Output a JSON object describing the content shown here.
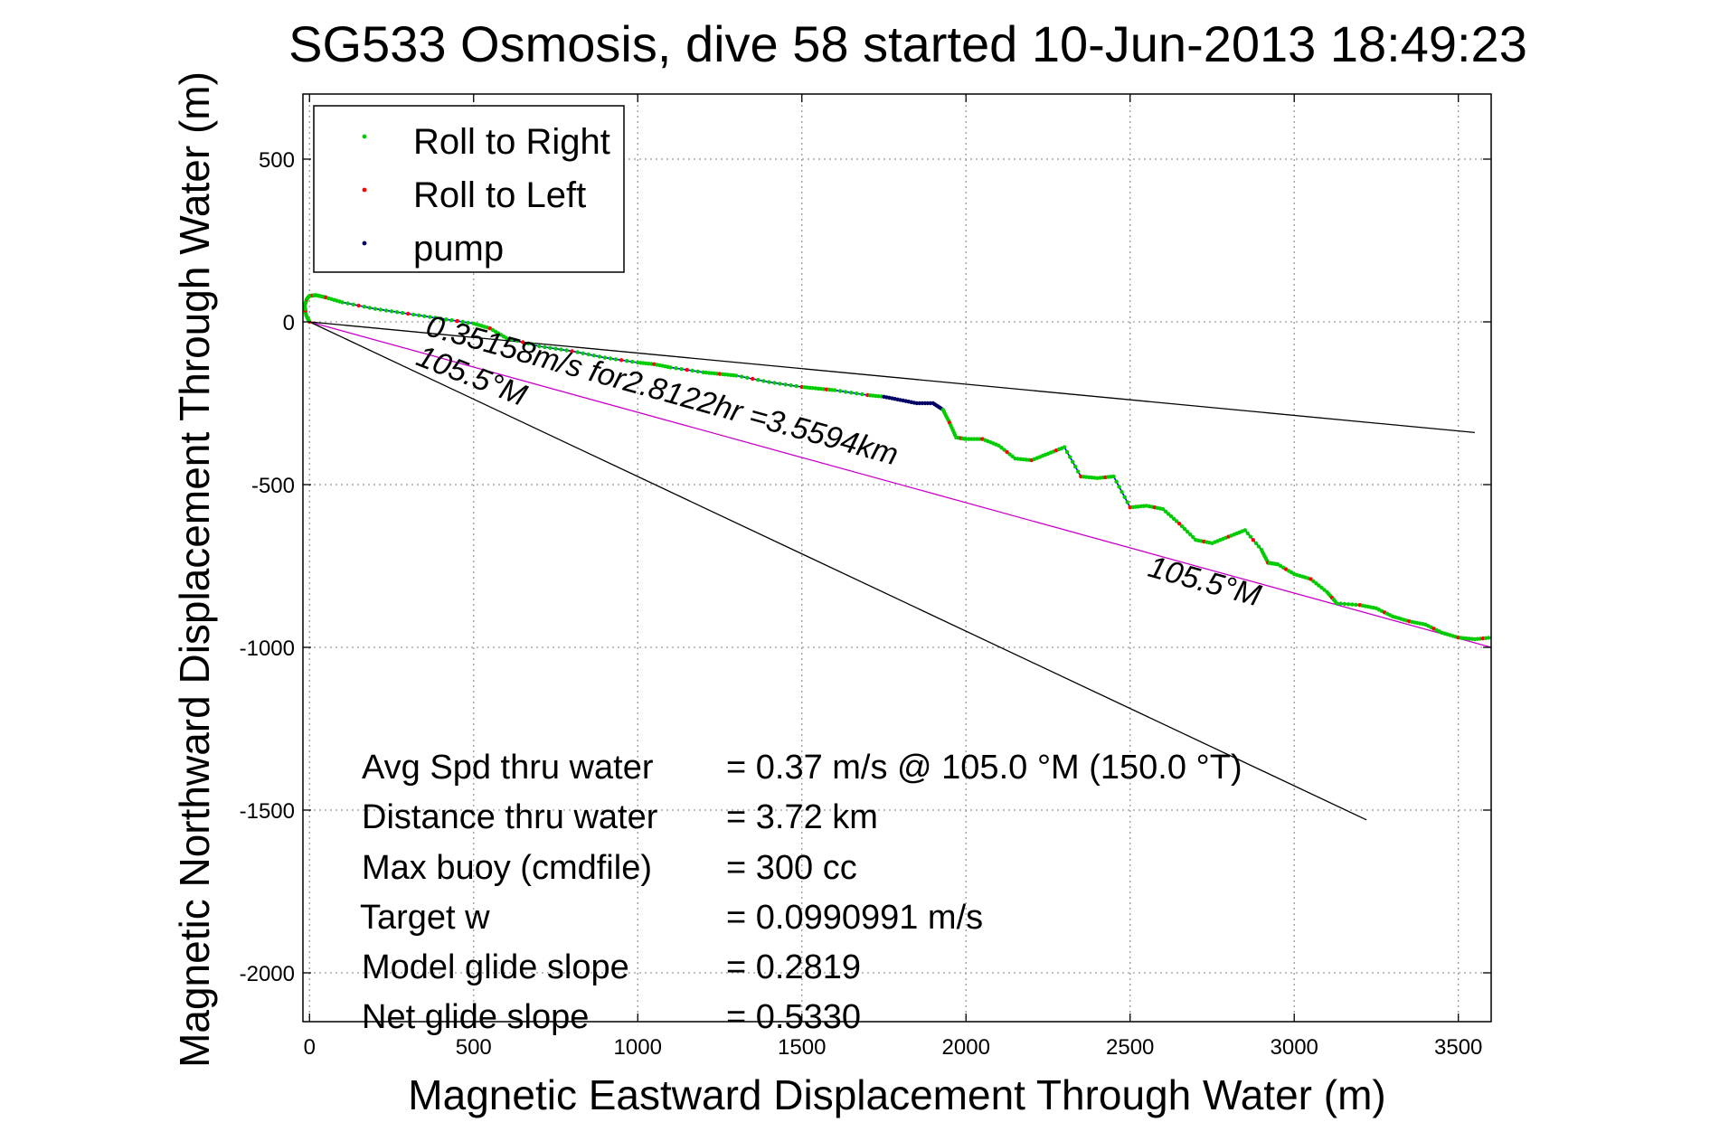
{
  "chart_data": {
    "type": "line",
    "title": "SG533 Osmosis, dive 58 started 10-Jun-2013 18:49:23",
    "xlabel": "Magnetic Eastward Displacement Through Water (m)",
    "ylabel": "Magnetic Northward Displacement Through Water (m)",
    "xlim": [
      -20,
      3600
    ],
    "ylim": [
      -2150,
      700
    ],
    "xticks": [
      "0",
      "500",
      "1000",
      "1500",
      "2000",
      "2500",
      "3000",
      "3500"
    ],
    "yticks": [
      "500",
      "0",
      "-500",
      "-1000",
      "-1500",
      "-2000"
    ],
    "grid": true,
    "legend_position": "top-left",
    "legend": [
      {
        "label": "Roll to Right",
        "color": "#00cc00"
      },
      {
        "label": "Roll to Left",
        "color": "#ff0000"
      },
      {
        "label": "pump",
        "color": "#000066"
      }
    ],
    "series": [
      {
        "name": "track",
        "color": "#0000ff",
        "x": [
          0,
          -10,
          -15,
          -8,
          0,
          20,
          50,
          100,
          200,
          300,
          400,
          500,
          550,
          600,
          700,
          800,
          900,
          1000,
          1050,
          1100,
          1200,
          1250,
          1300,
          1400,
          1500,
          1550,
          1600,
          1700,
          1750,
          1800,
          1850,
          1900,
          1930,
          1950,
          1970,
          2000,
          2050,
          2100,
          2150,
          2200,
          2250,
          2300,
          2350,
          2400,
          2450,
          2500,
          2550,
          2600,
          2650,
          2700,
          2750,
          2800,
          2850,
          2900,
          2920,
          2950,
          3000,
          3050,
          3100,
          3130,
          3200,
          3250,
          3300,
          3350,
          3400,
          3450,
          3500,
          3550,
          3600
        ],
        "y": [
          0,
          20,
          50,
          70,
          80,
          82,
          75,
          60,
          40,
          25,
          10,
          -5,
          -20,
          -50,
          -75,
          -90,
          -110,
          -125,
          -130,
          -140,
          -155,
          -160,
          -165,
          -185,
          -200,
          -205,
          -210,
          -225,
          -230,
          -240,
          -250,
          -250,
          -270,
          -310,
          -355,
          -360,
          -360,
          -380,
          -420,
          -425,
          -405,
          -385,
          -475,
          -480,
          -475,
          -570,
          -565,
          -575,
          -620,
          -670,
          -680,
          -660,
          -640,
          -700,
          -740,
          -745,
          -775,
          -790,
          -830,
          -865,
          -870,
          -880,
          -905,
          -920,
          -930,
          -955,
          -970,
          -975,
          -970
        ]
      },
      {
        "name": "",
        "color": "#cc00cc",
        "x": [
          0,
          3600
        ],
        "y": [
          0,
          -1000
        ]
      },
      {
        "name": "",
        "color": "#000000",
        "x": [
          0,
          3550
        ],
        "y": [
          0,
          -340
        ]
      },
      {
        "name": "",
        "color": "#000000",
        "x": [
          0,
          3220
        ],
        "y": [
          0,
          -1530
        ]
      }
    ],
    "annotations": [
      {
        "text": "0.35158m/s for2.8122hr =3.5594km",
        "x": 350,
        "y": -40,
        "rotation_deg": 15.5
      },
      {
        "text": "105.5°M",
        "x": 320,
        "y": -130,
        "rotation_deg": 21.5
      },
      {
        "text": "105.5°M",
        "x": 2550,
        "y": -780,
        "rotation_deg": 15.5
      }
    ],
    "stats": [
      {
        "label": "Avg Spd thru water",
        "value": "=  0.37 m/s @ 105.0 °M (150.0 °T)"
      },
      {
        "label": "Distance thru water",
        "value": "=  3.72 km"
      },
      {
        "label": "Max buoy (cmdfile)",
        "value": "= 300 cc"
      },
      {
        "label": "Target w",
        "value": "= 0.0990991 m/s"
      },
      {
        "label": "Model glide slope",
        "value": "= 0.2819"
      },
      {
        "label": "Net glide slope",
        "value": "= 0.5330"
      }
    ]
  }
}
